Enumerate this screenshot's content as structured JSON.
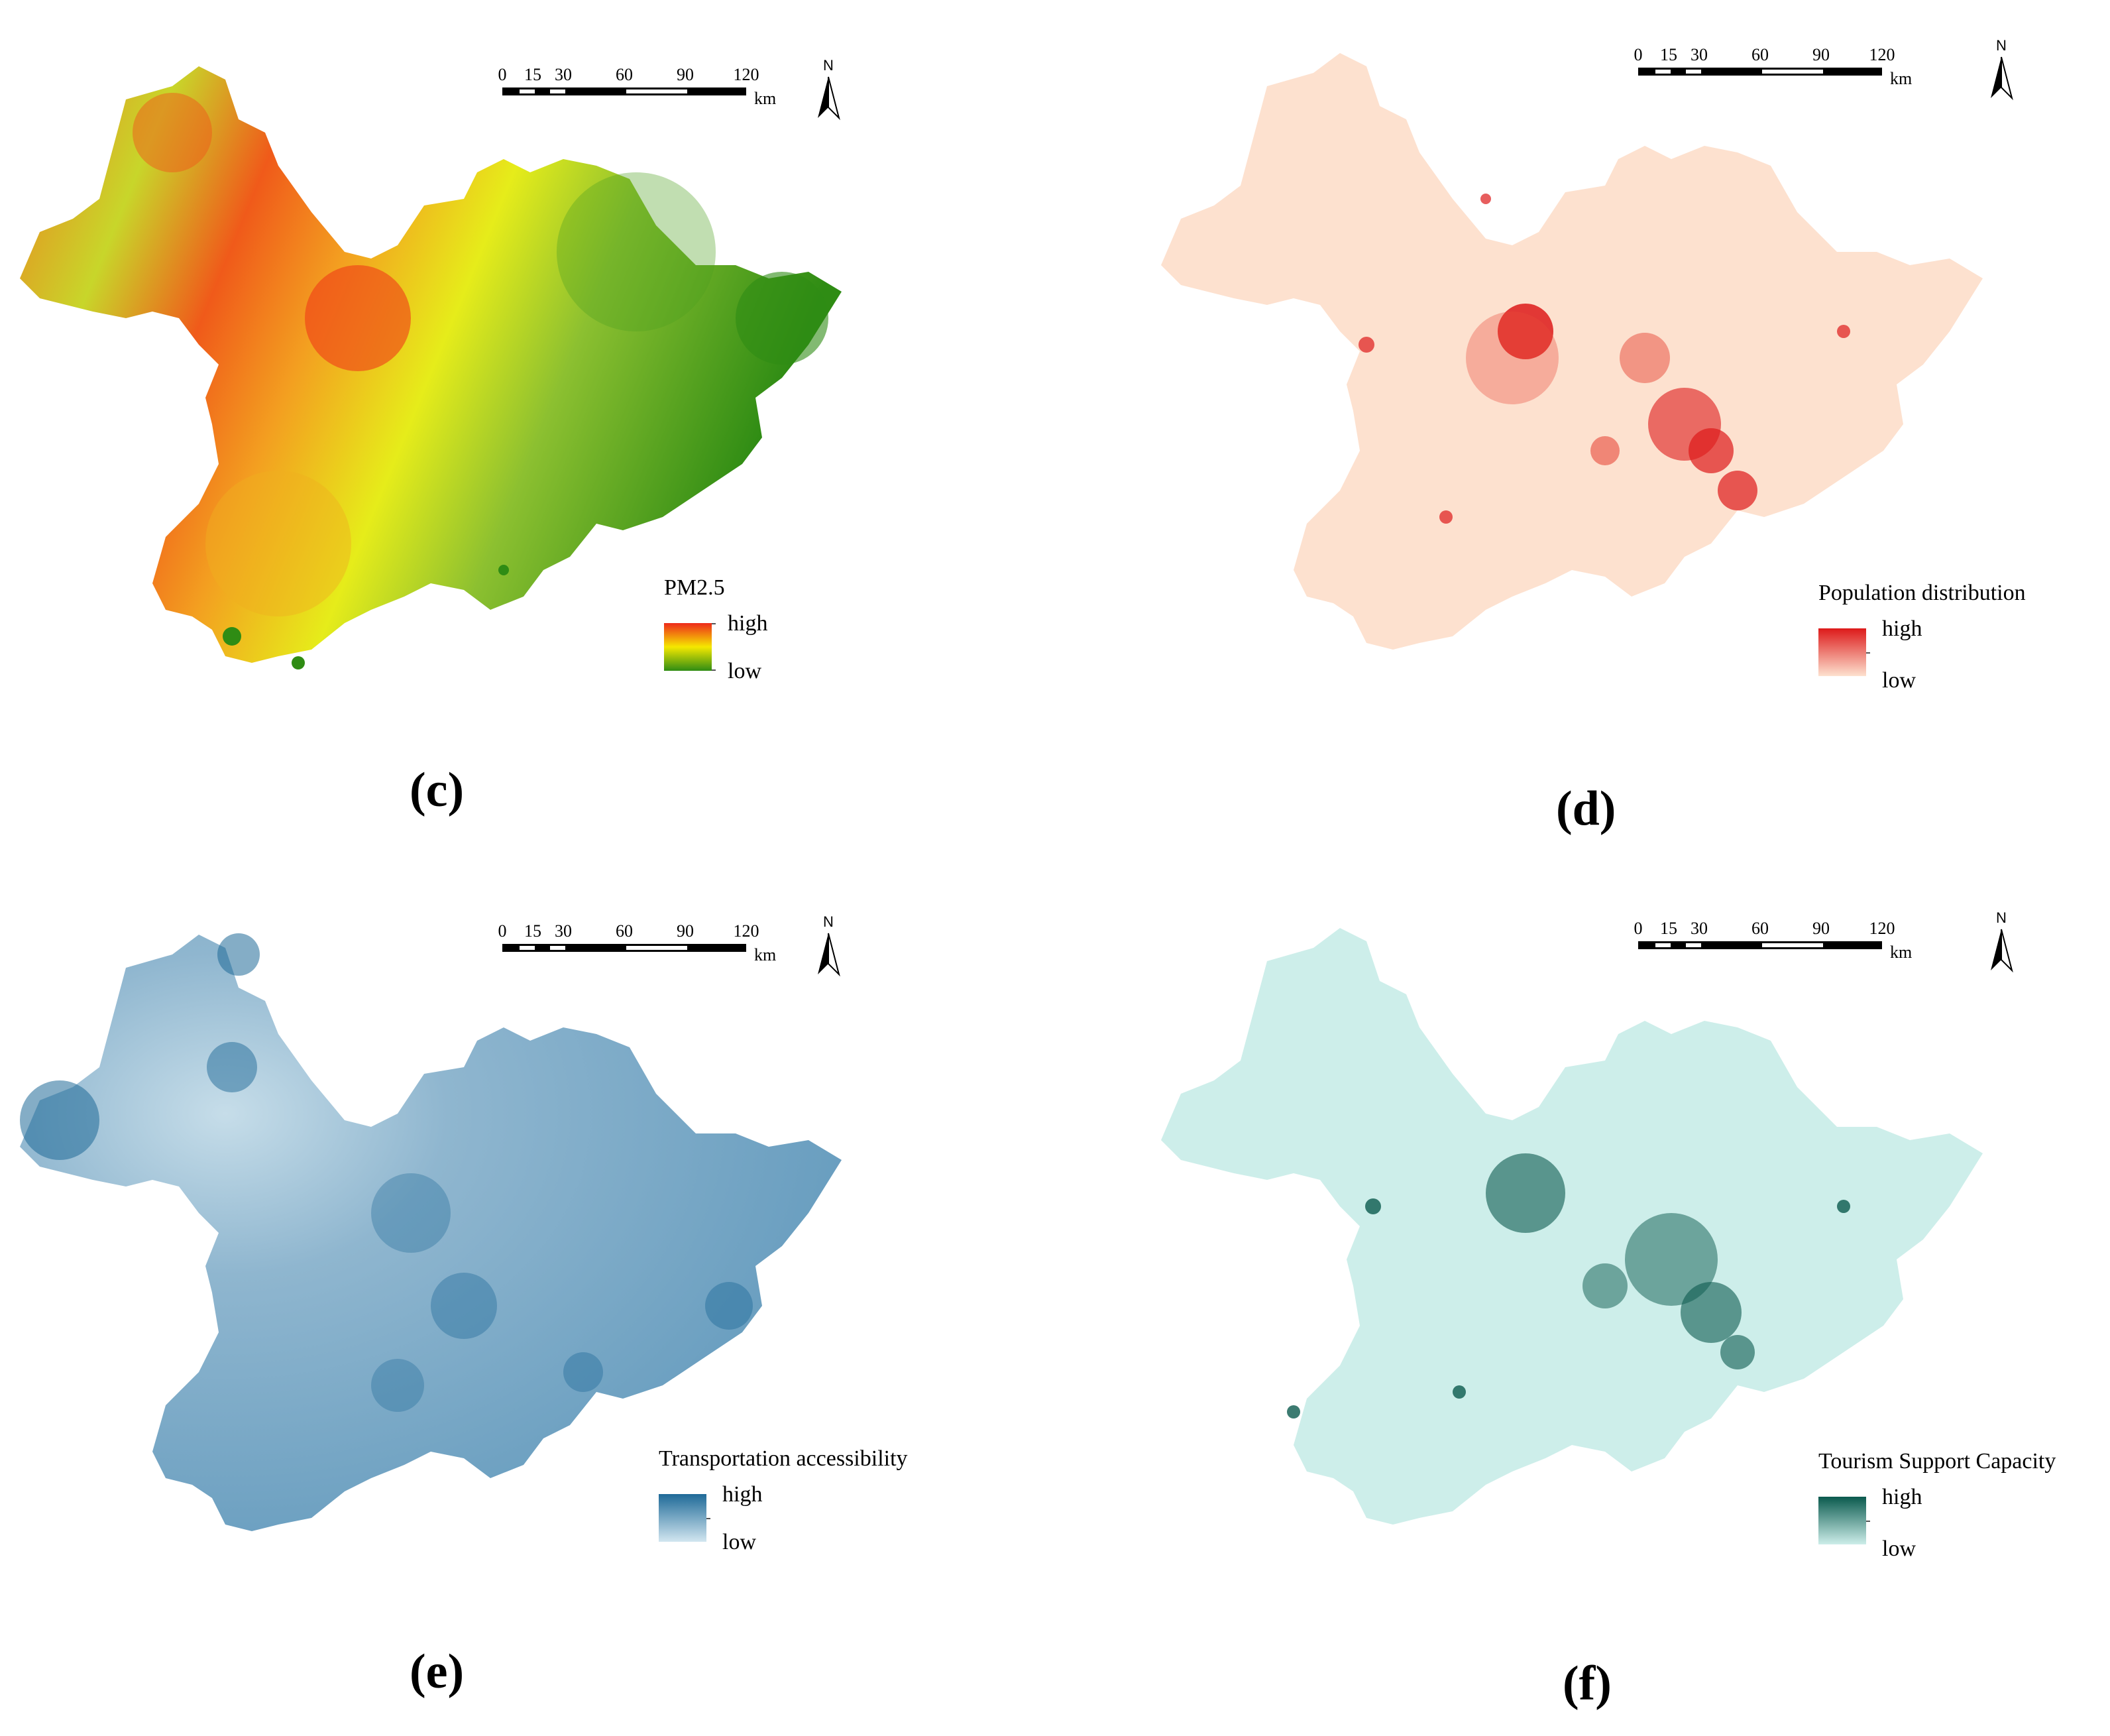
{
  "panels": {
    "c": {
      "label": "(c)",
      "legend": {
        "title": "PM2.5",
        "high": "high",
        "low": "low"
      },
      "colors": {
        "high": "#ee2a1a",
        "mid": "#f5e800",
        "low": "#2f8c14"
      }
    },
    "d": {
      "label": "(d)",
      "legend": {
        "title": "Population distribution",
        "high": "high",
        "low": "low"
      },
      "colors": {
        "high": "#dd1a1a",
        "low": "#fde1cf"
      }
    },
    "e": {
      "label": "(e)",
      "legend": {
        "title": "Transportation accessibility",
        "high": "high",
        "low": "low"
      },
      "colors": {
        "high": "#1f6a98",
        "low": "#d2e6f0"
      }
    },
    "f": {
      "label": "(f)",
      "legend": {
        "title": "Tourism Support Capacity",
        "high": "high",
        "low": "low"
      },
      "colors": {
        "high": "#0b5a4e",
        "low": "#cdeeea"
      }
    }
  },
  "scale": {
    "ticks": [
      "0",
      "15",
      "30",
      "60",
      "90",
      "120"
    ],
    "unit": "km"
  },
  "north": {
    "label": "N"
  }
}
